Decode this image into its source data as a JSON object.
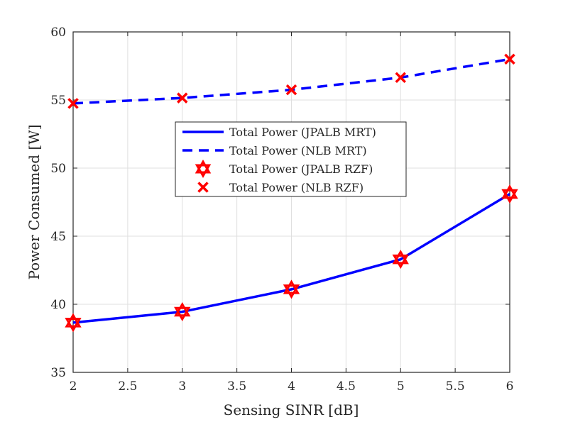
{
  "chart_data": {
    "type": "line",
    "title": "",
    "xlabel": "Sensing SINR [dB]",
    "ylabel": "Power Consumed [W]",
    "xlim": [
      2,
      6
    ],
    "ylim": [
      35,
      60
    ],
    "xticks": [
      2,
      2.5,
      3,
      3.5,
      4,
      4.5,
      5,
      5.5,
      6
    ],
    "xtick_labels": [
      "2",
      "2.5",
      "3",
      "3.5",
      "4",
      "4.5",
      "5",
      "5.5",
      "6"
    ],
    "yticks": [
      35,
      40,
      45,
      50,
      55,
      60
    ],
    "ytick_labels": [
      "35",
      "40",
      "45",
      "50",
      "55",
      "60"
    ],
    "grid": true,
    "legend_position": "center",
    "x": [
      2,
      3,
      4,
      5,
      6
    ],
    "series": [
      {
        "name": "Total Power (JPALB MRT)",
        "style": "solid",
        "marker": "none",
        "color": "#0000ff",
        "values": [
          38.65,
          39.45,
          41.1,
          43.3,
          48.1
        ]
      },
      {
        "name": "Total Power (NLB MRT)",
        "style": "dashed",
        "marker": "none",
        "color": "#0000ff",
        "values": [
          54.75,
          55.15,
          55.75,
          56.65,
          58.0
        ]
      },
      {
        "name": "Total Power (JPALB RZF)",
        "style": "none",
        "marker": "hexagram",
        "color": "#ff0000",
        "values": [
          38.65,
          39.45,
          41.1,
          43.3,
          48.1
        ]
      },
      {
        "name": "Total Power (NLB RZF)",
        "style": "none",
        "marker": "x",
        "color": "#ff0000",
        "values": [
          54.75,
          55.15,
          55.75,
          56.65,
          58.0
        ]
      }
    ]
  }
}
